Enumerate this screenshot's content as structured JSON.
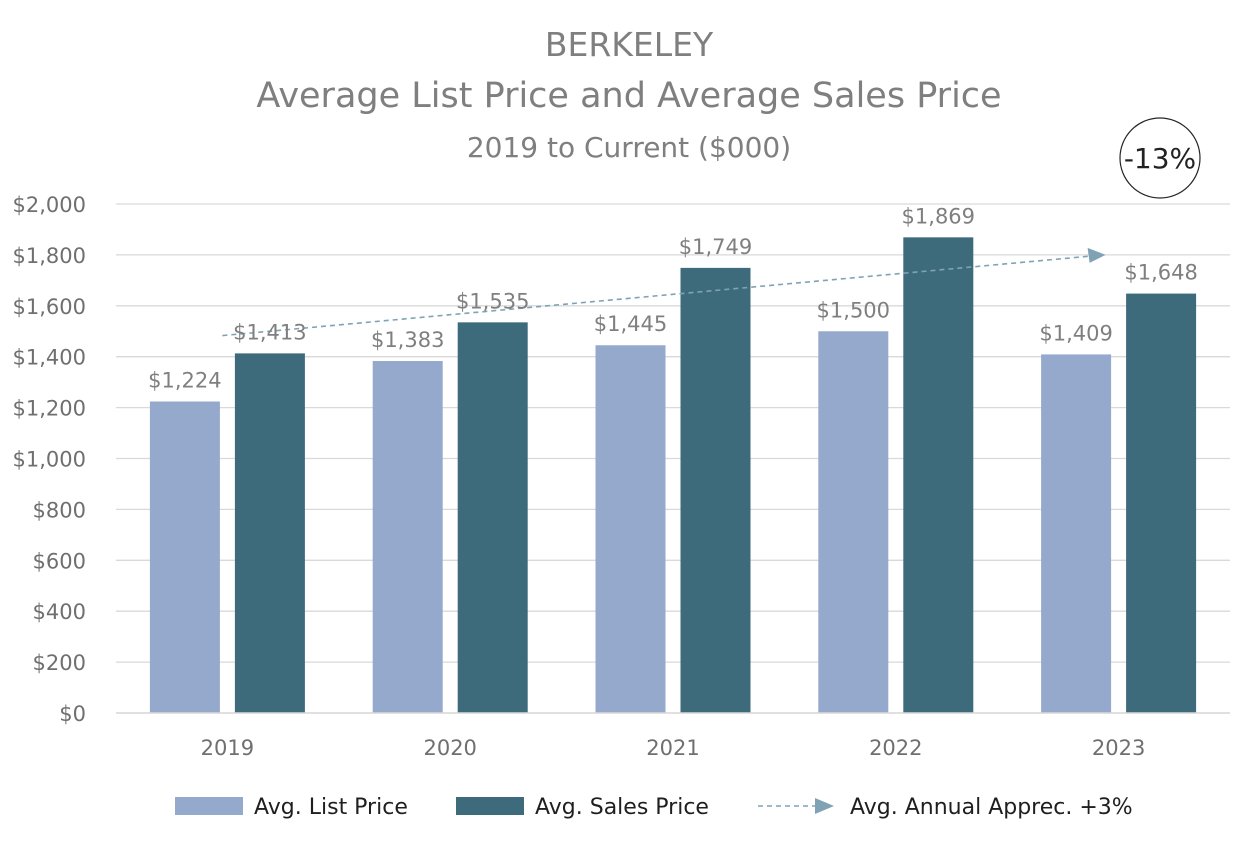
{
  "chart_data": {
    "type": "bar",
    "title": "BERKELEY",
    "subtitle": "Average List Price and Average Sales Price",
    "subtitle2": "2019 to Current ($000)",
    "categories": [
      "2019",
      "2020",
      "2021",
      "2022",
      "2023"
    ],
    "series": [
      {
        "name": "Avg. List Price",
        "color": "#95a9cc",
        "values": [
          1224,
          1383,
          1445,
          1500,
          1409
        ],
        "labels": [
          "$1,224",
          "$1,383",
          "$1,445",
          "$1,500",
          "$1,409"
        ]
      },
      {
        "name": "Avg. Sales Price",
        "color": "#3d6b7c",
        "values": [
          1413,
          1535,
          1749,
          1869,
          1648
        ],
        "labels": [
          "$1,413",
          "$1,535",
          "$1,749",
          "$1,869",
          "$1,648"
        ]
      }
    ],
    "trend": {
      "name": "Avg. Annual Apprec. +3%",
      "color": "#7fa3b5",
      "from": {
        "category": "2019",
        "value": 1483
      },
      "to": {
        "category": "2023",
        "value": 1800
      }
    },
    "badge": "-13%",
    "ylim": [
      0,
      2000
    ],
    "yticks": [
      0,
      200,
      400,
      600,
      800,
      1000,
      1200,
      1400,
      1600,
      1800,
      2000
    ],
    "ytick_labels": [
      "$0",
      "$200",
      "$400",
      "$600",
      "$800",
      "$1,000",
      "$1,200",
      "$1,400",
      "$1,600",
      "$1,800",
      "$2,000"
    ],
    "grid": true,
    "legend_position": "bottom",
    "xlabel": "",
    "ylabel": ""
  }
}
